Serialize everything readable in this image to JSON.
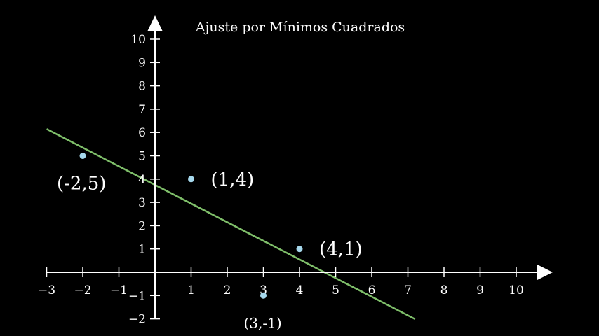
{
  "chart_data": {
    "type": "scatter",
    "title": "Ajuste por Mínimos Cuadrados",
    "xlabel": "",
    "ylabel": "",
    "xlim": [
      -3,
      11
    ],
    "ylim": [
      -2,
      11
    ],
    "x_ticks": [
      -3,
      -2,
      -1,
      1,
      2,
      3,
      4,
      5,
      6,
      7,
      8,
      9,
      10
    ],
    "x_tick_labels": [
      "−3",
      "−2",
      "−1",
      "1",
      "2",
      "3",
      "4",
      "5",
      "6",
      "7",
      "8",
      "9",
      "10"
    ],
    "y_ticks": [
      -2,
      -1,
      1,
      2,
      3,
      4,
      5,
      6,
      7,
      8,
      9,
      10
    ],
    "y_tick_labels": [
      "−2",
      "−1",
      "1",
      "2",
      "3",
      "4",
      "5",
      "6",
      "7",
      "8",
      "9",
      "10"
    ],
    "grid": false,
    "series": [
      {
        "points": [
          {
            "x": -2,
            "y": 5,
            "label": "(-2,5)"
          },
          {
            "x": 1,
            "y": 4,
            "label": "(1,4)"
          },
          {
            "x": 4,
            "y": 1,
            "label": "(4,1)"
          },
          {
            "x": 3,
            "y": -1,
            "label": "(3,-1)"
          }
        ],
        "color": "#a6d8ec"
      }
    ],
    "fit_line": {
      "slope": -0.8,
      "intercept": 3.75,
      "x_range": [
        -3,
        7.2
      ],
      "color": "#7fbf6a"
    },
    "axis_color": "#ffffff"
  }
}
